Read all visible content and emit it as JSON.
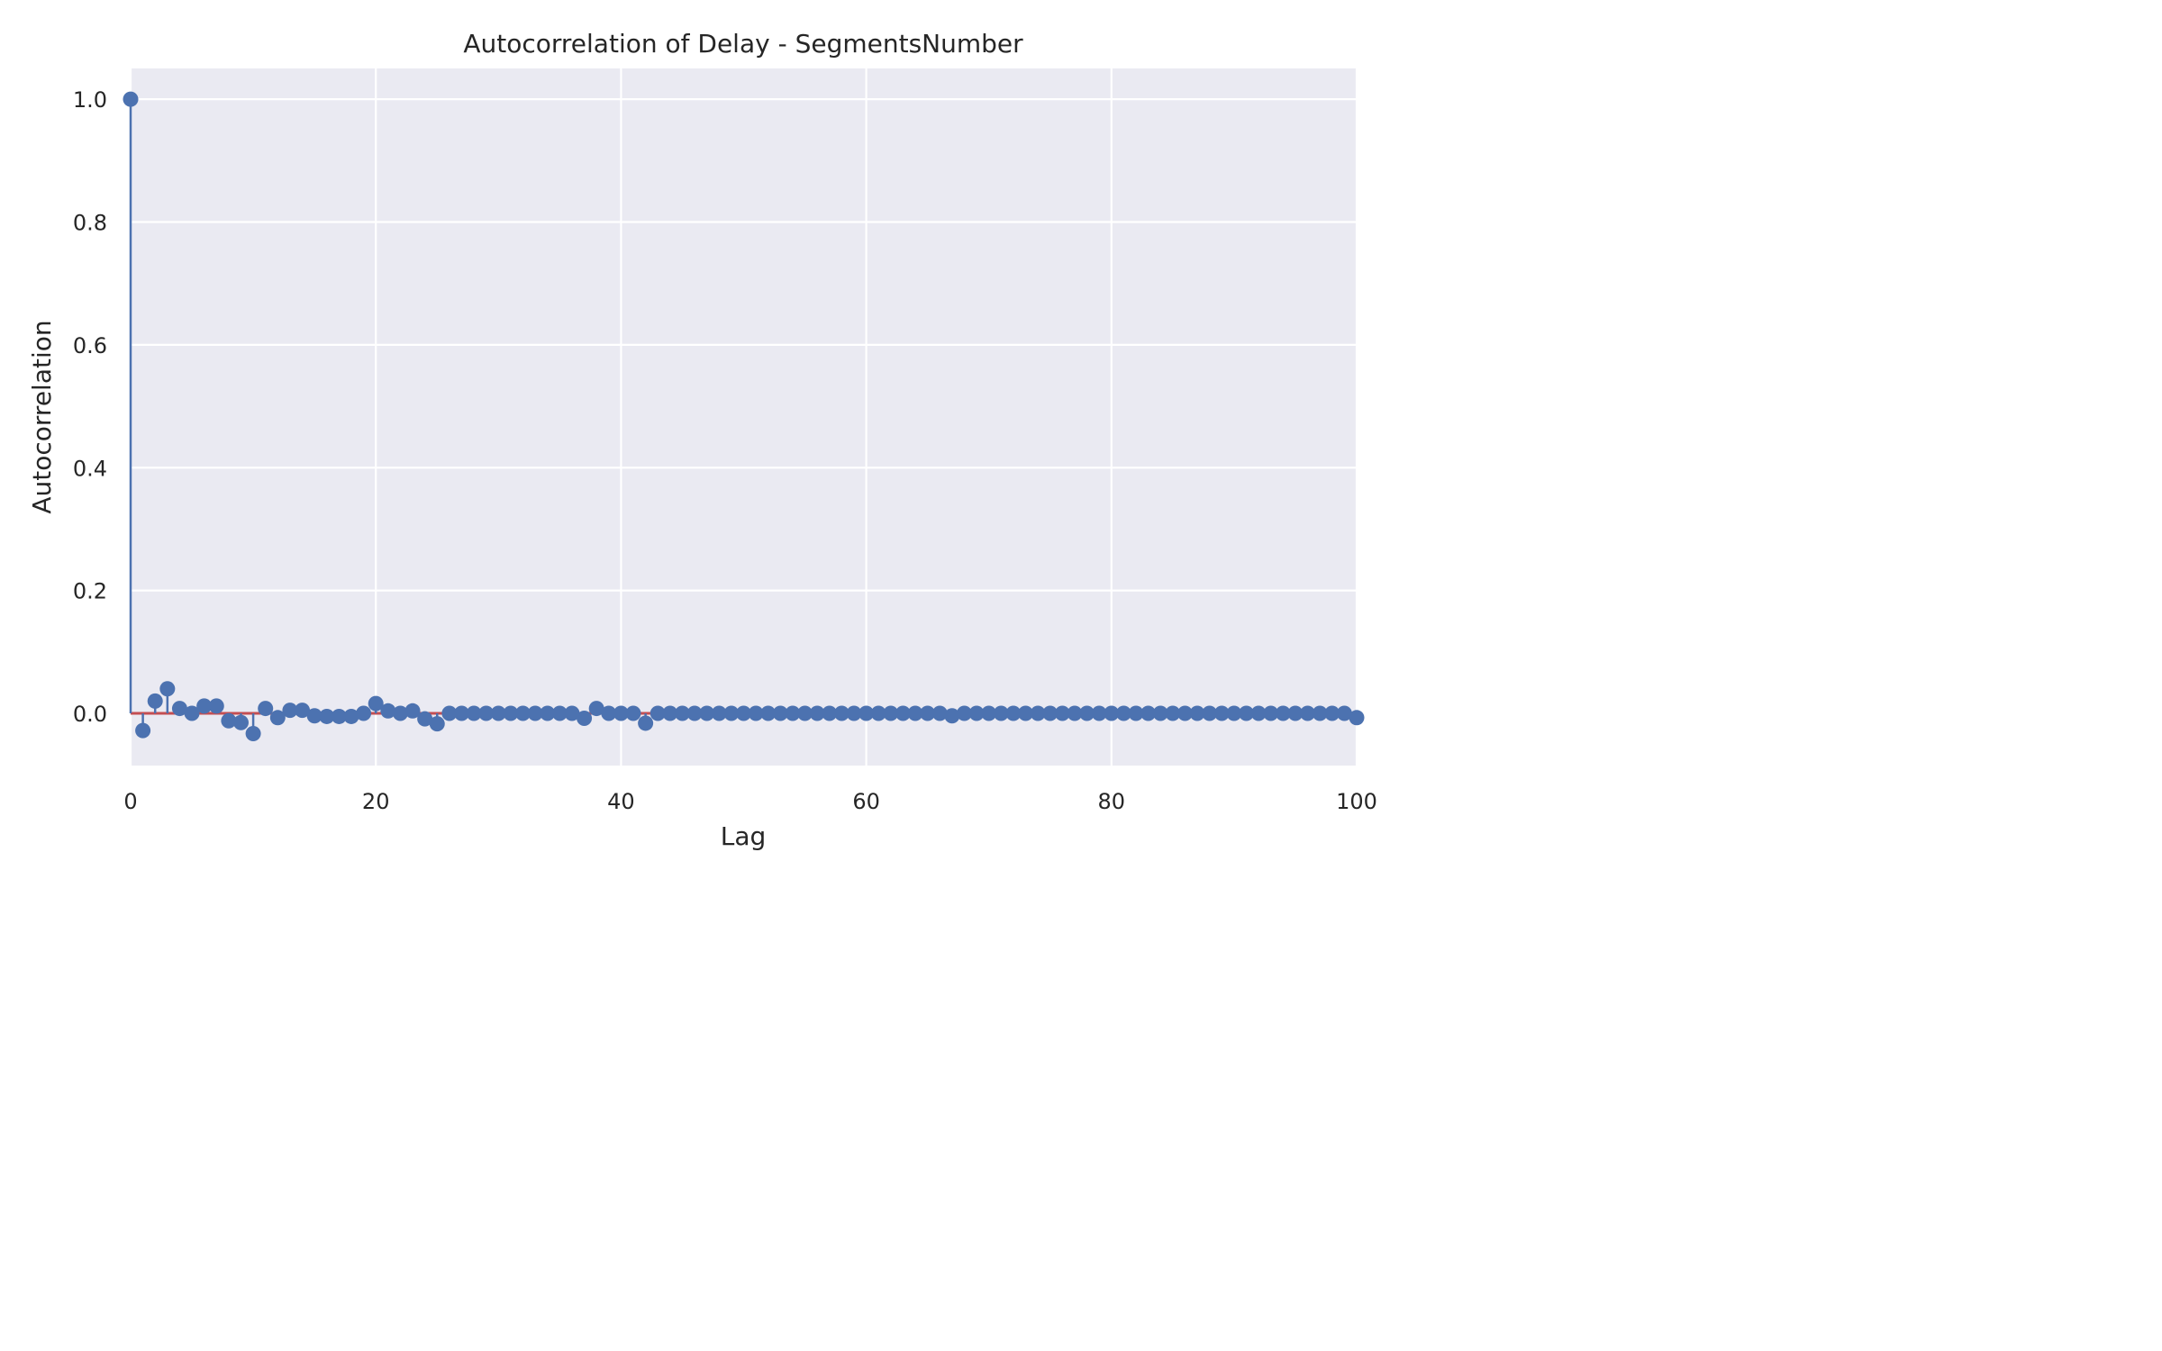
{
  "chart_data": {
    "type": "scatter",
    "style": "stem",
    "title": "Autocorrelation of Delay - SegmentsNumber",
    "xlabel": "Lag",
    "ylabel": "Autocorrelation",
    "xlim": [
      0,
      100
    ],
    "ylim": [
      -0.085,
      1.05
    ],
    "x_ticks": [
      0,
      20,
      40,
      60,
      80,
      100
    ],
    "x_tick_labels": [
      "0",
      "20",
      "40",
      "60",
      "80",
      "100"
    ],
    "y_ticks": [
      0.0,
      0.2,
      0.4,
      0.6,
      0.8,
      1.0
    ],
    "y_tick_labels": [
      "0.0",
      "0.2",
      "0.4",
      "0.6",
      "0.8",
      "1.0"
    ],
    "grid": true,
    "baseline": 0,
    "colors": {
      "background": "#EAEAF2",
      "grid": "#FFFFFF",
      "markers": "#4C72B0",
      "baseline": "#C44E52"
    },
    "series": [
      {
        "x": [
          0,
          1,
          2,
          3,
          4,
          5,
          6,
          7,
          8,
          9,
          10,
          11,
          12,
          13,
          14,
          15,
          16,
          17,
          18,
          19,
          20,
          21,
          22,
          23,
          24,
          25,
          26,
          27,
          28,
          29,
          30,
          31,
          32,
          33,
          34,
          35,
          36,
          37,
          38,
          39,
          40,
          41,
          42,
          43,
          44,
          45,
          46,
          47,
          48,
          49,
          50,
          51,
          52,
          53,
          54,
          55,
          56,
          57,
          58,
          59,
          60,
          61,
          62,
          63,
          64,
          65,
          66,
          67,
          68,
          69,
          70,
          71,
          72,
          73,
          74,
          75,
          76,
          77,
          78,
          79,
          80,
          81,
          82,
          83,
          84,
          85,
          86,
          87,
          88,
          89,
          90,
          91,
          92,
          93,
          94,
          95,
          96,
          97,
          98,
          99,
          100
        ],
        "values": [
          1.0,
          -0.028,
          0.02,
          0.04,
          0.008,
          0.0,
          0.012,
          0.012,
          -0.012,
          -0.015,
          -0.033,
          0.008,
          -0.007,
          0.005,
          0.005,
          -0.004,
          -0.005,
          -0.005,
          -0.005,
          0.0,
          0.016,
          0.004,
          0.0,
          0.004,
          -0.009,
          -0.017,
          0.0,
          0.0,
          0.0,
          0.0,
          0.0,
          0.0,
          0.0,
          0.0,
          0.0,
          0.0,
          0.0,
          -0.008,
          0.008,
          0.0,
          0.0,
          0.0,
          -0.016,
          0.0,
          0.0,
          0.0,
          0.0,
          0.0,
          0.0,
          0.0,
          0.0,
          0.0,
          0.0,
          0.0,
          0.0,
          0.0,
          0.0,
          0.0,
          0.0,
          0.0,
          0.0,
          0.0,
          0.0,
          0.0,
          0.0,
          0.0,
          0.0,
          -0.004,
          0.0,
          0.0,
          0.0,
          0.0,
          0.0,
          0.0,
          0.0,
          0.0,
          0.0,
          0.0,
          0.0,
          0.0,
          0.0,
          0.0,
          0.0,
          0.0,
          0.0,
          0.0,
          0.0,
          0.0,
          0.0,
          0.0,
          0.0,
          0.0,
          0.0,
          0.0,
          0.0,
          0.0,
          0.0,
          0.0,
          0.0,
          0.0,
          -0.007
        ]
      }
    ]
  }
}
